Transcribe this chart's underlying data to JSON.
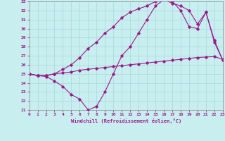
{
  "xlabel": "Windchill (Refroidissement éolien,°C)",
  "bg_color": "#c8eef0",
  "grid_color": "#aadddd",
  "line_color": "#9b1a8a",
  "xlim": [
    0,
    23
  ],
  "ylim": [
    21,
    33
  ],
  "xticks": [
    0,
    1,
    2,
    3,
    4,
    5,
    6,
    7,
    8,
    9,
    10,
    11,
    12,
    13,
    14,
    15,
    16,
    17,
    18,
    19,
    20,
    21,
    22,
    23
  ],
  "yticks": [
    21,
    22,
    23,
    24,
    25,
    26,
    27,
    28,
    29,
    30,
    31,
    32,
    33
  ],
  "line1_x": [
    0,
    1,
    2,
    3,
    4,
    5,
    6,
    7,
    8,
    9,
    10,
    11,
    12,
    13,
    14,
    15,
    16,
    17,
    18,
    19,
    20,
    21,
    22,
    23
  ],
  "line1_y": [
    25.0,
    24.8,
    24.8,
    25.0,
    25.1,
    25.2,
    25.4,
    25.5,
    25.6,
    25.7,
    25.8,
    25.9,
    26.0,
    26.1,
    26.2,
    26.3,
    26.4,
    26.5,
    26.6,
    26.7,
    26.8,
    26.85,
    26.9,
    26.6
  ],
  "line2_x": [
    0,
    1,
    2,
    3,
    4,
    5,
    6,
    7,
    8,
    9,
    10,
    11,
    12,
    13,
    14,
    15,
    16,
    17,
    18,
    19,
    20,
    21,
    22,
    23
  ],
  "line2_y": [
    25.0,
    24.8,
    24.7,
    24.2,
    23.6,
    22.7,
    22.2,
    21.0,
    21.4,
    23.0,
    25.0,
    27.0,
    28.0,
    29.5,
    31.0,
    32.5,
    33.2,
    33.0,
    32.0,
    30.2,
    30.0,
    31.8,
    28.5,
    26.5
  ],
  "line3_x": [
    0,
    1,
    2,
    3,
    4,
    5,
    6,
    7,
    8,
    9,
    10,
    11,
    12,
    13,
    14,
    15,
    16,
    17,
    18,
    19,
    20,
    21,
    22,
    23
  ],
  "line3_y": [
    25.0,
    24.8,
    24.8,
    25.0,
    25.5,
    26.0,
    26.8,
    27.8,
    28.5,
    29.5,
    30.2,
    31.2,
    31.8,
    32.2,
    32.5,
    33.0,
    33.2,
    32.8,
    32.5,
    32.0,
    30.5,
    31.8,
    28.7,
    26.5
  ]
}
